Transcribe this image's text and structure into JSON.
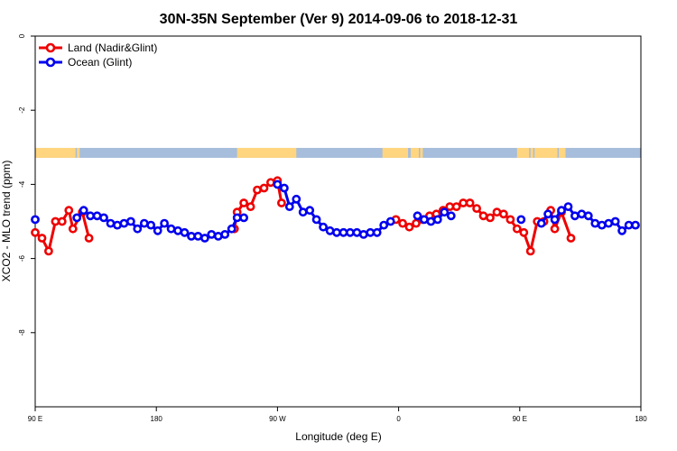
{
  "chart_data": {
    "type": "line",
    "title": "30N-35N September (Ver 9)   2014-09-06 to 2018-12-31",
    "xlabel": "Longitude (deg E)",
    "ylabel": "XCO2 - MLO trend (ppm)",
    "xlim": [
      90,
      540
    ],
    "ylim": [
      -10,
      0
    ],
    "x_ticks": [
      {
        "value": 90,
        "label": "90 E"
      },
      {
        "value": 180,
        "label": "180"
      },
      {
        "value": 270,
        "label": "90 W"
      },
      {
        "value": 360,
        "label": "0"
      },
      {
        "value": 450,
        "label": "90 E"
      },
      {
        "value": 540,
        "label": "180"
      }
    ],
    "y_ticks": [
      {
        "value": 0,
        "label": "0"
      },
      {
        "value": -2,
        "label": "-2"
      },
      {
        "value": -4,
        "label": "-4"
      },
      {
        "value": -6,
        "label": "-6"
      },
      {
        "value": -8,
        "label": "-8"
      }
    ],
    "grid": false,
    "legend_position": "top-left",
    "series": [
      {
        "name": "Land (Nadir&Glint)",
        "color": "#ee0000",
        "segments": [
          [
            [
              90,
              -5.3
            ],
            [
              95,
              -5.45
            ],
            [
              100,
              -5.8
            ],
            [
              105,
              -5.0
            ],
            [
              110,
              -5.0
            ],
            [
              115,
              -4.7
            ],
            [
              118,
              -5.2
            ],
            [
              125,
              -4.75
            ],
            [
              130,
              -5.45
            ]
          ],
          [
            [
              238,
              -5.2
            ],
            [
              240,
              -4.75
            ],
            [
              245,
              -4.5
            ],
            [
              250,
              -4.6
            ],
            [
              255,
              -4.15
            ],
            [
              260,
              -4.1
            ],
            [
              265,
              -3.95
            ],
            [
              270,
              -3.9
            ],
            [
              273,
              -4.5
            ]
          ],
          [
            [
              358,
              -4.95
            ],
            [
              363,
              -5.05
            ],
            [
              368,
              -5.15
            ],
            [
              373,
              -5.05
            ],
            [
              378,
              -4.95
            ],
            [
              383,
              -4.85
            ],
            [
              388,
              -4.8
            ],
            [
              393,
              -4.7
            ],
            [
              398,
              -4.6
            ],
            [
              403,
              -4.6
            ],
            [
              408,
              -4.5
            ],
            [
              413,
              -4.5
            ],
            [
              418,
              -4.65
            ],
            [
              423,
              -4.85
            ],
            [
              428,
              -4.9
            ],
            [
              433,
              -4.75
            ],
            [
              438,
              -4.8
            ],
            [
              443,
              -4.95
            ],
            [
              448,
              -5.2
            ],
            [
              453,
              -5.3
            ],
            [
              458,
              -5.8
            ],
            [
              463,
              -5.0
            ],
            [
              468,
              -5.0
            ],
            [
              473,
              -4.7
            ],
            [
              476,
              -5.2
            ],
            [
              481,
              -4.75
            ],
            [
              488,
              -5.45
            ]
          ]
        ]
      },
      {
        "name": "Ocean (Glint)",
        "color": "#0000ee",
        "segments": [
          [
            [
              90,
              -4.95
            ]
          ],
          [
            [
              121,
              -4.9
            ],
            [
              126,
              -4.7
            ],
            [
              131,
              -4.85
            ],
            [
              136,
              -4.85
            ],
            [
              141,
              -4.9
            ],
            [
              146,
              -5.05
            ],
            [
              151,
              -5.1
            ],
            [
              156,
              -5.05
            ],
            [
              161,
              -5.0
            ],
            [
              166,
              -5.2
            ],
            [
              171,
              -5.05
            ],
            [
              176,
              -5.1
            ],
            [
              181,
              -5.25
            ],
            [
              186,
              -5.05
            ],
            [
              191,
              -5.2
            ],
            [
              196,
              -5.25
            ],
            [
              201,
              -5.3
            ],
            [
              206,
              -5.4
            ],
            [
              211,
              -5.4
            ],
            [
              216,
              -5.45
            ],
            [
              221,
              -5.35
            ],
            [
              226,
              -5.4
            ],
            [
              231,
              -5.35
            ],
            [
              236,
              -5.2
            ],
            [
              240,
              -4.9
            ],
            [
              245,
              -4.9
            ]
          ],
          [
            [
              270,
              -4.0
            ],
            [
              275,
              -4.1
            ],
            [
              279,
              -4.6
            ],
            [
              284,
              -4.4
            ],
            [
              289,
              -4.75
            ],
            [
              294,
              -4.7
            ],
            [
              299,
              -4.95
            ],
            [
              304,
              -5.15
            ],
            [
              309,
              -5.25
            ],
            [
              314,
              -5.3
            ],
            [
              319,
              -5.3
            ],
            [
              324,
              -5.3
            ],
            [
              329,
              -5.3
            ],
            [
              334,
              -5.35
            ],
            [
              339,
              -5.3
            ],
            [
              344,
              -5.3
            ],
            [
              349,
              -5.1
            ],
            [
              354,
              -5.0
            ]
          ],
          [
            [
              374,
              -4.85
            ],
            [
              379,
              -4.95
            ],
            [
              384,
              -5.0
            ],
            [
              389,
              -4.95
            ],
            [
              394,
              -4.75
            ],
            [
              399,
              -4.85
            ]
          ],
          [
            [
              451,
              -4.95
            ]
          ],
          [
            [
              466,
              -5.05
            ],
            [
              471,
              -4.8
            ],
            [
              476,
              -4.95
            ],
            [
              481,
              -4.7
            ],
            [
              486,
              -4.6
            ],
            [
              491,
              -4.85
            ],
            [
              496,
              -4.8
            ],
            [
              501,
              -4.85
            ],
            [
              506,
              -5.05
            ],
            [
              511,
              -5.1
            ],
            [
              516,
              -5.05
            ],
            [
              521,
              -5.0
            ],
            [
              526,
              -5.25
            ],
            [
              531,
              -5.1
            ],
            [
              536,
              -5.1
            ]
          ]
        ]
      }
    ],
    "land_mask": {
      "y": -3.15,
      "ocean_color": "#a6bddb",
      "land_color": "#ffd580",
      "land_ranges": [
        [
          90,
          120
        ],
        [
          121,
          122
        ],
        [
          122,
          123
        ],
        [
          240,
          284
        ],
        [
          348,
          367
        ],
        [
          369,
          375
        ],
        [
          376,
          378
        ],
        [
          448,
          457
        ],
        [
          458,
          460
        ],
        [
          461,
          478
        ],
        [
          479,
          484
        ]
      ]
    }
  }
}
